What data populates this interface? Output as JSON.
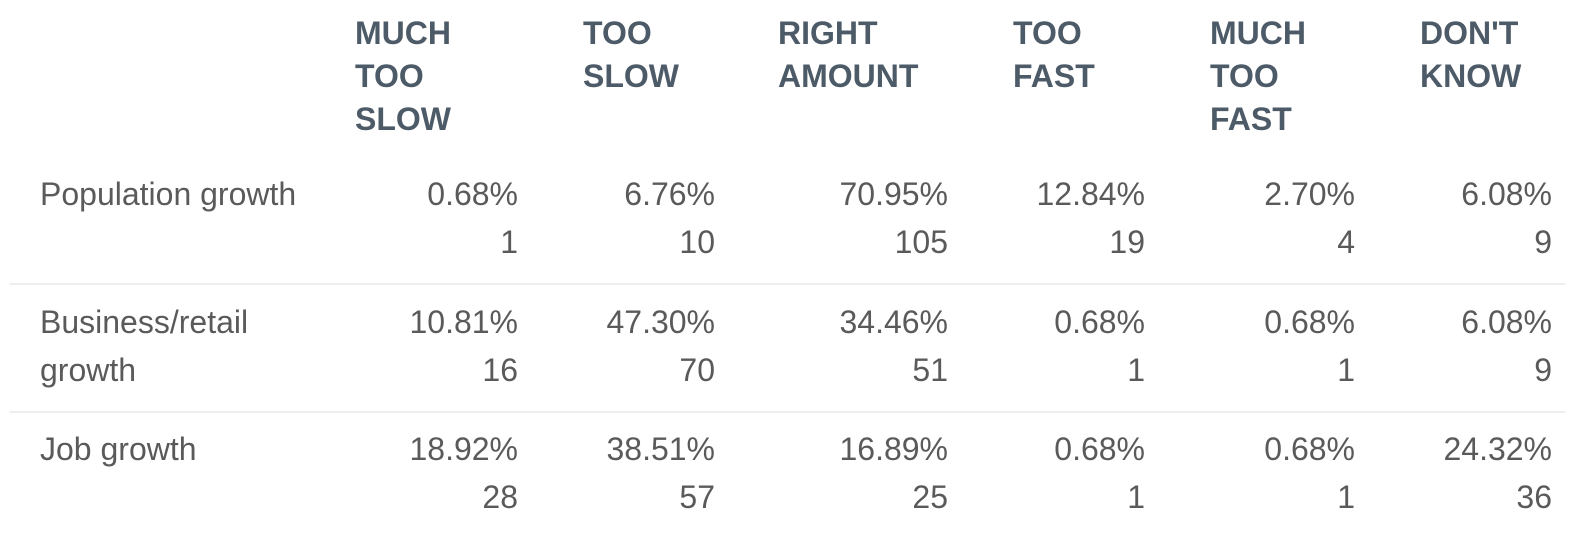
{
  "header": {
    "columns": [
      "MUCH TOO SLOW",
      "TOO SLOW",
      "RIGHT AMOUNT",
      "TOO FAST",
      "MUCH TOO FAST",
      "DON'T KNOW"
    ]
  },
  "table": {
    "rows": [
      {
        "label": "Population growth",
        "cells": [
          {
            "percent": "0.68%",
            "count": 1
          },
          {
            "percent": "6.76%",
            "count": 10
          },
          {
            "percent": "70.95%",
            "count": 105
          },
          {
            "percent": "12.84%",
            "count": 19
          },
          {
            "percent": "2.70%",
            "count": 4
          },
          {
            "percent": "6.08%",
            "count": 9
          }
        ]
      },
      {
        "label": "Business/retail growth",
        "cells": [
          {
            "percent": "10.81%",
            "count": 16
          },
          {
            "percent": "47.30%",
            "count": 70
          },
          {
            "percent": "34.46%",
            "count": 51
          },
          {
            "percent": "0.68%",
            "count": 1
          },
          {
            "percent": "0.68%",
            "count": 1
          },
          {
            "percent": "6.08%",
            "count": 9
          }
        ]
      },
      {
        "label": "Job growth",
        "cells": [
          {
            "percent": "18.92%",
            "count": 28
          },
          {
            "percent": "38.51%",
            "count": 57
          },
          {
            "percent": "16.89%",
            "count": 25
          },
          {
            "percent": "0.68%",
            "count": 1
          },
          {
            "percent": "0.68%",
            "count": 1
          },
          {
            "percent": "24.32%",
            "count": 36
          }
        ]
      }
    ]
  }
}
